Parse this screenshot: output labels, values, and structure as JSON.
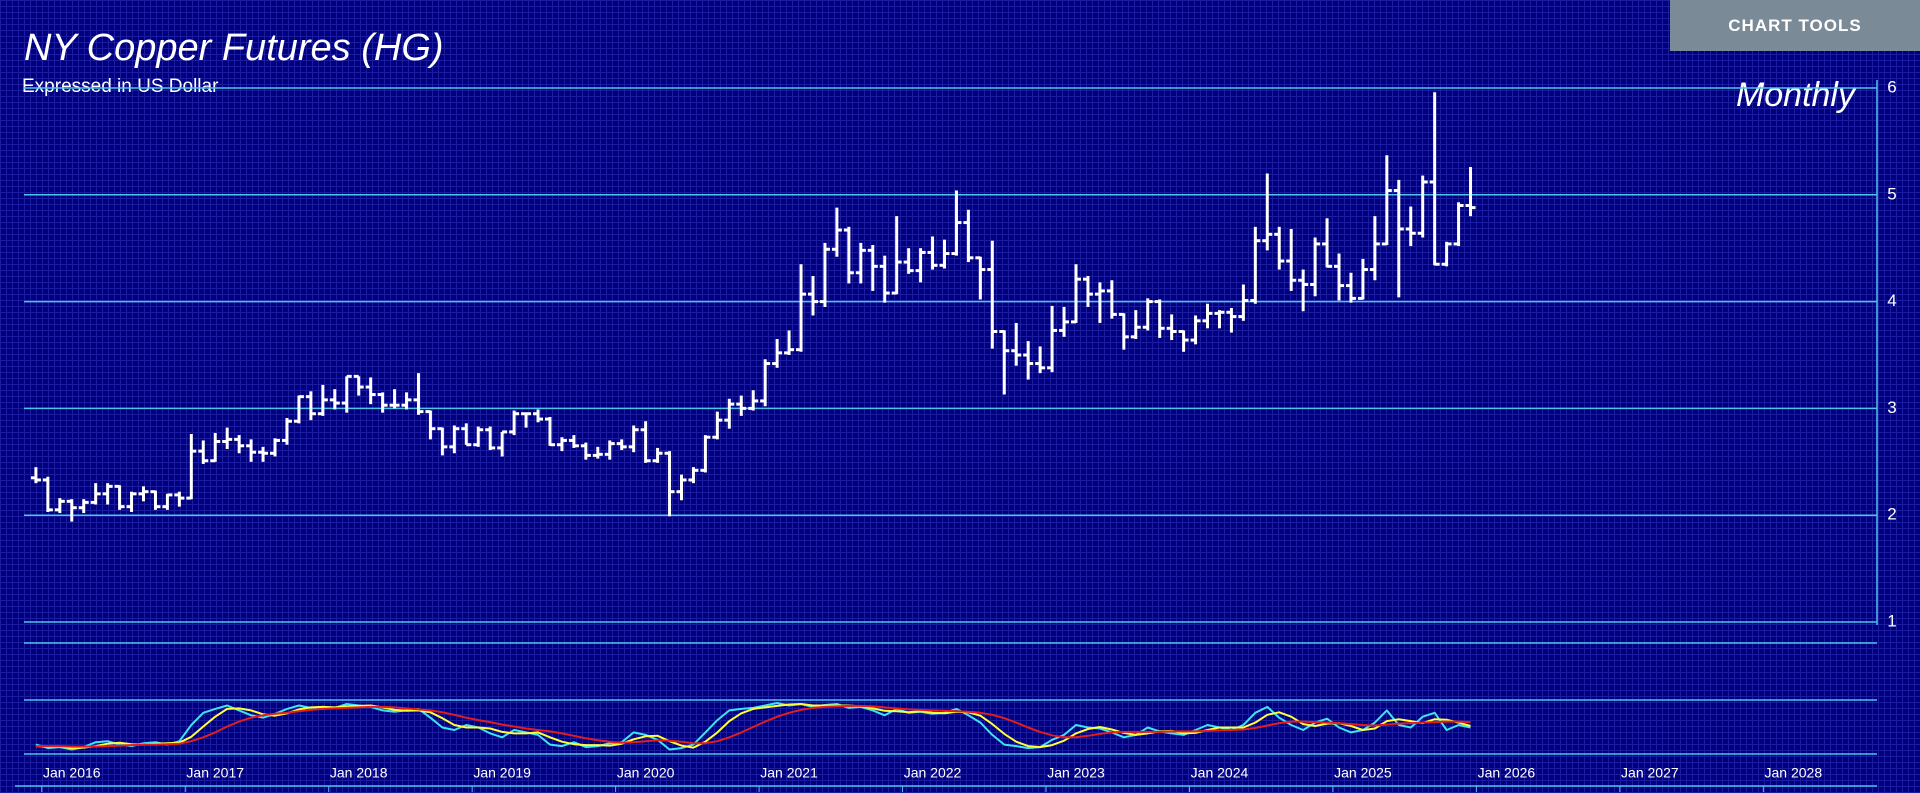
{
  "toolbar": {
    "button": "CHART TOOLS"
  },
  "chart_data": {
    "type": "ohlc",
    "title": "NY Copper Futures (HG)",
    "subtitle": "Expressed in US Dollar",
    "annotation": "Monthly",
    "color": "#ffffff",
    "grid": true,
    "grid_color": "#4cc6ea",
    "ylim": [
      1,
      6
    ],
    "yticks": [
      1,
      2,
      3,
      4,
      5,
      6
    ],
    "xlim": [
      "2015-08",
      "2028-08"
    ],
    "xticks": [
      {
        "value": "2016-01",
        "label": "Jan 2016"
      },
      {
        "value": "2017-01",
        "label": "Jan 2017"
      },
      {
        "value": "2018-01",
        "label": "Jan 2018"
      },
      {
        "value": "2019-01",
        "label": "Jan 2019"
      },
      {
        "value": "2020-01",
        "label": "Jan 2020"
      },
      {
        "value": "2021-01",
        "label": "Jan 2021"
      },
      {
        "value": "2022-01",
        "label": "Jan 2022"
      },
      {
        "value": "2023-01",
        "label": "Jan 2023"
      },
      {
        "value": "2024-01",
        "label": "Jan 2024"
      },
      {
        "value": "2025-01",
        "label": "Jan 2025"
      },
      {
        "value": "2026-01",
        "label": "Jan 2026"
      },
      {
        "value": "2027-01",
        "label": "Jan 2027"
      },
      {
        "value": "2028-01",
        "label": "Jan 2028"
      }
    ],
    "x": [
      "2015-10",
      "2015-11",
      "2015-12",
      "2016-01",
      "2016-02",
      "2016-03",
      "2016-04",
      "2016-05",
      "2016-06",
      "2016-07",
      "2016-08",
      "2016-09",
      "2016-10",
      "2016-11",
      "2016-12",
      "2017-01",
      "2017-02",
      "2017-03",
      "2017-04",
      "2017-05",
      "2017-06",
      "2017-07",
      "2017-08",
      "2017-09",
      "2017-10",
      "2017-11",
      "2017-12",
      "2018-01",
      "2018-02",
      "2018-03",
      "2018-04",
      "2018-05",
      "2018-06",
      "2018-07",
      "2018-08",
      "2018-09",
      "2018-10",
      "2018-11",
      "2018-12",
      "2019-01",
      "2019-02",
      "2019-03",
      "2019-04",
      "2019-05",
      "2019-06",
      "2019-07",
      "2019-08",
      "2019-09",
      "2019-10",
      "2019-11",
      "2019-12",
      "2020-01",
      "2020-02",
      "2020-03",
      "2020-04",
      "2020-05",
      "2020-06",
      "2020-07",
      "2020-08",
      "2020-09",
      "2020-10",
      "2020-11",
      "2020-12",
      "2021-01",
      "2021-02",
      "2021-03",
      "2021-04",
      "2021-05",
      "2021-06",
      "2021-07",
      "2021-08",
      "2021-09",
      "2021-10",
      "2021-11",
      "2021-12",
      "2022-01",
      "2022-02",
      "2022-03",
      "2022-04",
      "2022-05",
      "2022-06",
      "2022-07",
      "2022-08",
      "2022-09",
      "2022-10",
      "2022-11",
      "2022-12",
      "2023-01",
      "2023-02",
      "2023-03",
      "2023-04",
      "2023-05",
      "2023-06",
      "2023-07",
      "2023-08",
      "2023-09",
      "2023-10",
      "2023-11",
      "2023-12",
      "2024-01",
      "2024-02",
      "2024-03",
      "2024-04",
      "2024-05",
      "2024-06",
      "2024-07",
      "2024-08",
      "2024-09",
      "2024-10",
      "2024-11",
      "2024-12",
      "2025-01",
      "2025-02",
      "2025-03",
      "2025-04",
      "2025-05",
      "2025-06",
      "2025-07",
      "2025-08",
      "2025-09",
      "2025-10"
    ],
    "open": [
      2.35,
      2.33,
      2.05,
      2.13,
      2.07,
      2.12,
      2.2,
      2.27,
      2.08,
      2.2,
      2.22,
      2.08,
      2.19,
      2.16,
      2.6,
      2.51,
      2.69,
      2.71,
      2.65,
      2.59,
      2.58,
      2.7,
      2.88,
      3.11,
      2.95,
      3.08,
      3.05,
      3.3,
      3.2,
      3.13,
      3.03,
      3.03,
      3.08,
      2.97,
      2.81,
      2.64,
      2.81,
      2.66,
      2.8,
      2.63,
      2.78,
      2.95,
      2.95,
      2.9,
      2.66,
      2.7,
      2.65,
      2.56,
      2.57,
      2.67,
      2.64,
      2.8,
      2.51,
      2.58,
      2.22,
      2.33,
      2.42,
      2.73,
      2.89,
      3.04,
      3.0,
      3.07,
      3.42,
      3.52,
      3.55,
      4.07,
      4.0,
      4.49,
      4.67,
      4.27,
      4.48,
      4.33,
      4.08,
      4.37,
      4.29,
      4.46,
      4.34,
      4.45,
      4.74,
      4.41,
      4.3,
      3.72,
      3.54,
      3.5,
      3.42,
      3.38,
      3.73,
      3.81,
      4.21,
      4.07,
      4.1,
      3.88,
      3.67,
      3.76,
      4.0,
      3.75,
      3.72,
      3.64,
      3.82,
      3.89,
      3.9,
      3.86,
      4.01,
      4.57,
      4.63,
      4.38,
      4.2,
      4.16,
      4.54,
      4.33,
      4.15,
      4.03,
      4.3,
      4.54,
      5.04,
      4.68,
      4.64,
      5.12,
      4.35,
      4.54,
      4.9
    ],
    "high": [
      2.45,
      2.36,
      2.16,
      2.15,
      2.15,
      2.3,
      2.3,
      2.28,
      2.22,
      2.27,
      2.23,
      2.2,
      2.22,
      2.76,
      2.7,
      2.77,
      2.82,
      2.75,
      2.71,
      2.64,
      2.72,
      2.91,
      3.12,
      3.16,
      3.22,
      3.18,
      3.3,
      3.3,
      3.29,
      3.15,
      3.18,
      3.15,
      3.33,
      2.98,
      2.82,
      2.84,
      2.86,
      2.83,
      2.83,
      2.78,
      2.98,
      2.96,
      2.99,
      2.92,
      2.73,
      2.75,
      2.68,
      2.64,
      2.7,
      2.71,
      2.84,
      2.88,
      2.63,
      2.6,
      2.38,
      2.45,
      2.75,
      2.97,
      3.09,
      3.12,
      3.17,
      3.46,
      3.65,
      3.73,
      4.35,
      4.24,
      4.55,
      4.88,
      4.7,
      4.55,
      4.53,
      4.43,
      4.8,
      4.5,
      4.5,
      4.61,
      4.58,
      5.04,
      4.86,
      4.42,
      4.57,
      3.73,
      3.8,
      3.63,
      3.58,
      3.96,
      3.95,
      4.35,
      4.24,
      4.18,
      4.2,
      3.89,
      3.92,
      4.03,
      4.02,
      3.88,
      3.73,
      3.87,
      3.98,
      3.92,
      3.94,
      4.16,
      4.7,
      5.2,
      4.7,
      4.68,
      4.3,
      4.6,
      4.78,
      4.45,
      4.27,
      4.4,
      4.8,
      5.37,
      5.14,
      4.89,
      5.18,
      5.96,
      4.56,
      4.93,
      5.26
    ],
    "low": [
      2.3,
      2.03,
      2.02,
      1.94,
      2.02,
      2.1,
      2.1,
      2.05,
      2.03,
      2.13,
      2.05,
      2.05,
      2.08,
      2.15,
      2.48,
      2.5,
      2.62,
      2.58,
      2.5,
      2.5,
      2.55,
      2.66,
      2.86,
      2.89,
      2.93,
      2.99,
      2.96,
      3.12,
      3.04,
      2.96,
      3.0,
      2.99,
      2.94,
      2.71,
      2.56,
      2.58,
      2.66,
      2.64,
      2.61,
      2.55,
      2.75,
      2.82,
      2.87,
      2.65,
      2.6,
      2.63,
      2.52,
      2.53,
      2.52,
      2.61,
      2.59,
      2.49,
      2.49,
      1.99,
      2.14,
      2.3,
      2.4,
      2.71,
      2.81,
      2.93,
      2.98,
      3.02,
      3.38,
      3.5,
      3.53,
      3.87,
      3.95,
      4.42,
      4.17,
      4.17,
      4.1,
      3.99,
      4.07,
      4.26,
      4.18,
      4.3,
      4.31,
      4.43,
      4.37,
      4.02,
      3.56,
      3.13,
      3.4,
      3.27,
      3.33,
      3.34,
      3.67,
      3.8,
      3.95,
      3.8,
      3.84,
      3.55,
      3.65,
      3.73,
      3.66,
      3.64,
      3.53,
      3.6,
      3.75,
      3.75,
      3.71,
      3.82,
      3.98,
      4.48,
      4.3,
      4.1,
      3.91,
      4.05,
      4.32,
      4.01,
      3.99,
      4.02,
      4.2,
      4.53,
      4.04,
      4.52,
      4.6,
      4.34,
      4.33,
      4.52,
      4.8
    ],
    "close": [
      2.33,
      2.05,
      2.13,
      2.07,
      2.12,
      2.2,
      2.27,
      2.08,
      2.2,
      2.22,
      2.08,
      2.19,
      2.16,
      2.6,
      2.51,
      2.69,
      2.71,
      2.65,
      2.59,
      2.58,
      2.7,
      2.88,
      3.11,
      2.95,
      3.08,
      3.05,
      3.3,
      3.2,
      3.13,
      3.03,
      3.03,
      3.08,
      2.97,
      2.81,
      2.64,
      2.81,
      2.66,
      2.8,
      2.63,
      2.78,
      2.95,
      2.95,
      2.9,
      2.66,
      2.7,
      2.65,
      2.56,
      2.57,
      2.67,
      2.64,
      2.8,
      2.51,
      2.58,
      2.22,
      2.33,
      2.42,
      2.73,
      2.89,
      3.04,
      3.0,
      3.07,
      3.42,
      3.52,
      3.55,
      4.07,
      4.0,
      4.49,
      4.67,
      4.27,
      4.48,
      4.33,
      4.08,
      4.37,
      4.29,
      4.46,
      4.34,
      4.45,
      4.74,
      4.41,
      4.3,
      3.72,
      3.54,
      3.5,
      3.42,
      3.38,
      3.73,
      3.81,
      4.21,
      4.07,
      4.1,
      3.88,
      3.67,
      3.76,
      4.0,
      3.75,
      3.72,
      3.64,
      3.82,
      3.89,
      3.9,
      3.86,
      4.01,
      4.57,
      4.63,
      4.38,
      4.2,
      4.16,
      4.54,
      4.33,
      4.15,
      4.03,
      4.3,
      4.54,
      5.04,
      4.68,
      4.64,
      5.12,
      4.35,
      4.54,
      4.9,
      4.88
    ],
    "indicator": {
      "type": "line",
      "ylim": [
        0,
        100
      ],
      "series": [
        {
          "color": "#3de4f2",
          "values": [
            15,
            8,
            10,
            5,
            10,
            20,
            22,
            15,
            12,
            18,
            20,
            15,
            22,
            55,
            80,
            88,
            95,
            85,
            75,
            70,
            78,
            88,
            95,
            90,
            92,
            90,
            98,
            95,
            92,
            85,
            82,
            85,
            88,
            70,
            50,
            45,
            55,
            50,
            38,
            30,
            45,
            40,
            35,
            15,
            12,
            20,
            10,
            12,
            18,
            20,
            40,
            35,
            25,
            5,
            8,
            15,
            40,
            65,
            85,
            88,
            90,
            95,
            100,
            95,
            98,
            92,
            96,
            98,
            90,
            92,
            85,
            75,
            88,
            80,
            82,
            78,
            80,
            88,
            75,
            60,
            35,
            15,
            12,
            8,
            10,
            25,
            35,
            55,
            50,
            48,
            40,
            30,
            35,
            50,
            42,
            38,
            35,
            45,
            55,
            50,
            45,
            55,
            80,
            92,
            70,
            55,
            45,
            60,
            68,
            50,
            40,
            45,
            60,
            85,
            55,
            50,
            72,
            80,
            45,
            55,
            50
          ]
        },
        {
          "color": "#ffff33",
          "values": [
            12,
            11,
            11,
            8,
            9,
            12,
            17,
            19,
            16,
            15,
            17,
            18,
            19,
            31,
            52,
            72,
            88,
            89,
            85,
            77,
            74,
            79,
            87,
            91,
            92,
            91,
            93,
            94,
            95,
            91,
            86,
            84,
            85,
            81,
            69,
            55,
            50,
            50,
            48,
            41,
            38,
            38,
            40,
            30,
            21,
            16,
            14,
            14,
            13,
            17,
            26,
            32,
            33,
            22,
            13,
            9,
            21,
            40,
            63,
            79,
            88,
            91,
            94,
            97,
            98,
            95,
            95,
            95,
            95,
            93,
            89,
            84,
            83,
            81,
            83,
            80,
            79,
            82,
            81,
            74,
            57,
            37,
            21,
            12,
            10,
            14,
            23,
            38,
            47,
            51,
            46,
            39,
            35,
            38,
            42,
            43,
            38,
            39,
            45,
            50,
            50,
            50,
            60,
            76,
            81,
            72,
            57,
            53,
            58,
            59,
            53,
            45,
            48,
            63,
            67,
            63,
            59,
            67,
            66,
            60,
            53
          ]
        },
        {
          "color": "#e41c1c",
          "values": [
            12,
            12,
            12,
            11,
            11,
            11,
            12,
            13,
            14,
            15,
            15,
            16,
            17,
            22,
            30,
            40,
            52,
            62,
            70,
            75,
            78,
            80,
            83,
            86,
            88,
            89,
            90,
            91,
            92,
            92,
            91,
            89,
            87,
            85,
            81,
            76,
            70,
            65,
            61,
            56,
            52,
            48,
            45,
            42,
            38,
            33,
            28,
            24,
            21,
            19,
            20,
            22,
            24,
            23,
            21,
            18,
            18,
            22,
            30,
            40,
            51,
            62,
            72,
            80,
            86,
            90,
            92,
            93,
            94,
            94,
            93,
            91,
            89,
            87,
            86,
            85,
            84,
            83,
            82,
            80,
            76,
            69,
            60,
            50,
            41,
            34,
            30,
            30,
            33,
            37,
            40,
            41,
            41,
            41,
            41,
            42,
            42,
            42,
            43,
            44,
            45,
            46,
            49,
            54,
            59,
            62,
            62,
            61,
            60,
            59,
            57,
            55,
            54,
            56,
            58,
            59,
            60,
            61,
            62,
            62,
            61
          ]
        }
      ]
    }
  }
}
